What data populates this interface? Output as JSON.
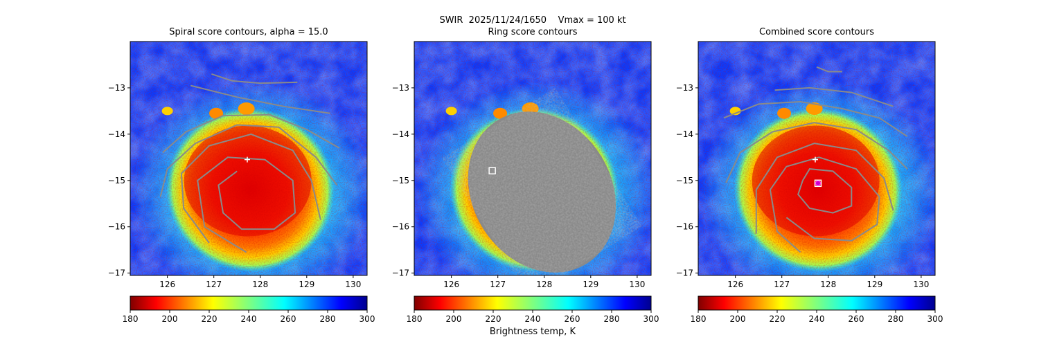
{
  "suptitle": "SWIR  2025/11/24/1650    Vmax = 100 kt",
  "colorbar_label": "Brightness temp, K",
  "chart_data": [
    {
      "type": "heatmap",
      "title": "Spiral score contours, alpha = 15.0",
      "x_ticks": [
        126,
        127,
        128,
        129,
        130
      ],
      "y_ticks": [
        -13,
        -14,
        -15,
        -16,
        -17
      ],
      "xlim": [
        125.2,
        130.3
      ],
      "ylim": [
        -17.05,
        -12.0
      ],
      "colormap": "jet_r",
      "color_range": [
        180,
        300
      ],
      "colorbar_ticks": [
        180,
        200,
        220,
        240,
        260,
        280,
        300
      ],
      "contours": "spiral score",
      "markers": [
        {
          "type": "plus",
          "x": 127.72,
          "y": -14.55,
          "color": "#ffffff"
        }
      ]
    },
    {
      "type": "heatmap",
      "title": "Ring score contours",
      "x_ticks": [
        126,
        127,
        128,
        129,
        130
      ],
      "y_ticks": [
        -13,
        -14,
        -15,
        -16,
        -17
      ],
      "xlim": [
        125.2,
        130.3
      ],
      "ylim": [
        -17.05,
        -12.0
      ],
      "colormap": "jet_r",
      "color_range": [
        180,
        300
      ],
      "colorbar_ticks": [
        180,
        200,
        220,
        240,
        260,
        280,
        300
      ],
      "contours": "ring score (dense fill over central dense overcast)",
      "markers": [
        {
          "type": "square",
          "x": 126.88,
          "y": -14.79,
          "color": "#ffffff"
        }
      ]
    },
    {
      "type": "heatmap",
      "title": "Combined score contours",
      "x_ticks": [
        126,
        127,
        128,
        129,
        130
      ],
      "y_ticks": [
        -13,
        -14,
        -15,
        -16,
        -17
      ],
      "xlim": [
        125.2,
        130.3
      ],
      "ylim": [
        -17.05,
        -12.0
      ],
      "colormap": "jet_r",
      "color_range": [
        180,
        300
      ],
      "colorbar_ticks": [
        180,
        200,
        220,
        240,
        260,
        280,
        300
      ],
      "contours": "combined score",
      "markers": [
        {
          "type": "plus",
          "x": 127.72,
          "y": -14.55,
          "color": "#ffffff"
        },
        {
          "type": "square",
          "x": 127.78,
          "y": -15.06,
          "color": "#ffffff"
        },
        {
          "type": "circle",
          "x": 127.78,
          "y": -15.06,
          "color": "#cc00cc"
        }
      ]
    }
  ]
}
